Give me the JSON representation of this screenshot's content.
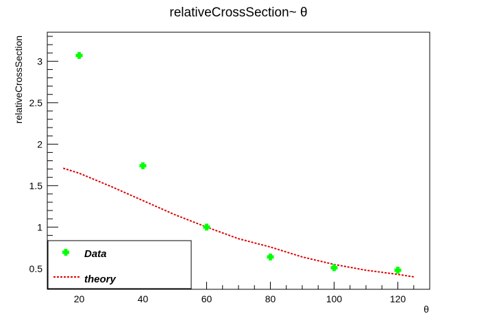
{
  "chart_data": {
    "type": "scatter",
    "title": "relativeCrossSection~ θ",
    "xlabel": "θ",
    "ylabel": "relativeCrossSection",
    "xlim": [
      10,
      130
    ],
    "ylim": [
      0.25,
      3.35
    ],
    "xticks": [
      20,
      40,
      60,
      80,
      100,
      120
    ],
    "xtick_labels": [
      "20",
      "40",
      "60",
      "80",
      "100",
      "120"
    ],
    "yticks": [
      0.5,
      1,
      1.5,
      2,
      2.5,
      3
    ],
    "ytick_labels": [
      "0.5",
      "1",
      "1.5",
      "2",
      "2.5",
      "3"
    ],
    "grid": false,
    "legend_position": "bottom-left",
    "series": [
      {
        "name": "Data",
        "kind": "points",
        "color": "#00ff00",
        "x": [
          20,
          40,
          60,
          80,
          100,
          120
        ],
        "y": [
          3.07,
          1.74,
          1.0,
          0.64,
          0.51,
          0.48
        ]
      },
      {
        "name": "theory",
        "kind": "dashed-line",
        "color": "#dd0000",
        "x": [
          15,
          20,
          30,
          40,
          50,
          60,
          70,
          80,
          90,
          100,
          110,
          120,
          125
        ],
        "y": [
          1.71,
          1.65,
          1.49,
          1.32,
          1.15,
          1.0,
          0.86,
          0.76,
          0.64,
          0.55,
          0.48,
          0.43,
          0.4
        ]
      }
    ]
  }
}
